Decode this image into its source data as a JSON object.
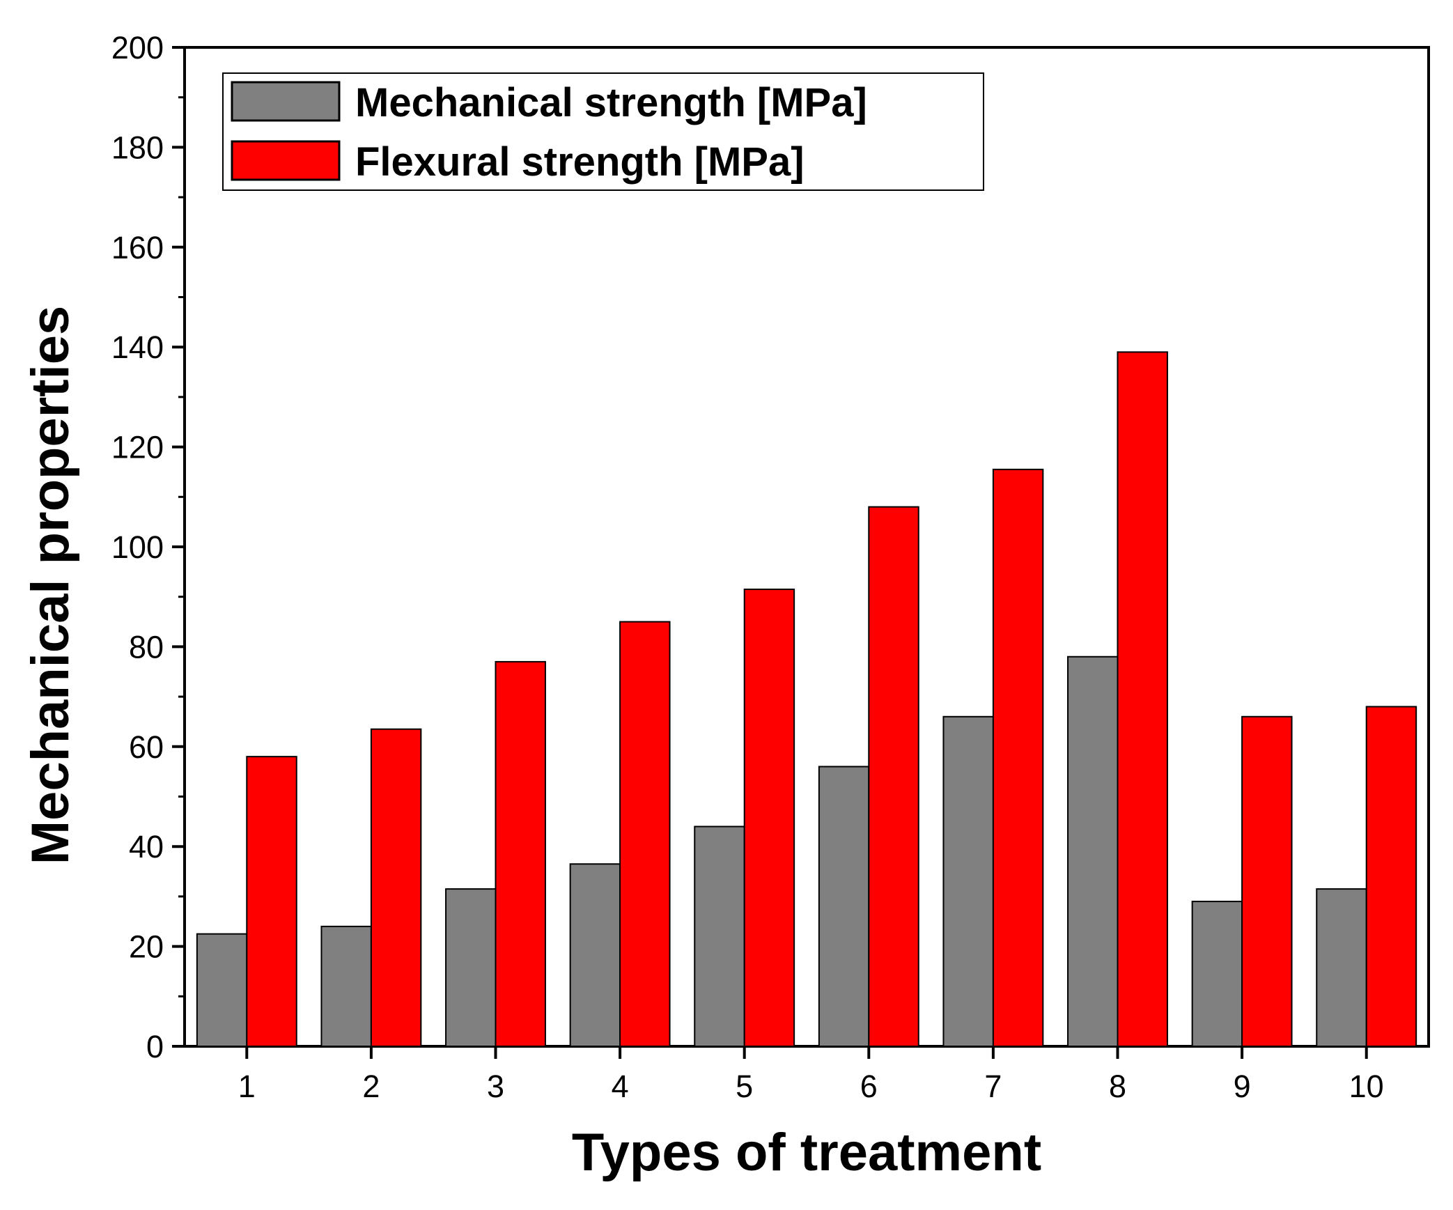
{
  "chart_data": {
    "type": "bar",
    "title": "",
    "xlabel": "Types of treatment",
    "ylabel": "Mechanical properties",
    "categories": [
      "1",
      "2",
      "3",
      "4",
      "5",
      "6",
      "7",
      "8",
      "9",
      "10"
    ],
    "series": [
      {
        "name": "Mechanical strength [MPa]",
        "color": "#808080",
        "values": [
          22.5,
          24,
          31.5,
          36.5,
          44,
          56,
          66,
          78,
          29,
          31.5
        ]
      },
      {
        "name": "Flexural strength [MPa]",
        "color": "#ff0000",
        "values": [
          58,
          63.5,
          77,
          85,
          91.5,
          108,
          115.5,
          139,
          66,
          68
        ]
      }
    ],
    "ylim": [
      0,
      200
    ],
    "yticks": [
      0,
      20,
      40,
      60,
      80,
      100,
      120,
      140,
      160,
      180,
      200
    ],
    "grid": false,
    "legend": "top-left"
  }
}
